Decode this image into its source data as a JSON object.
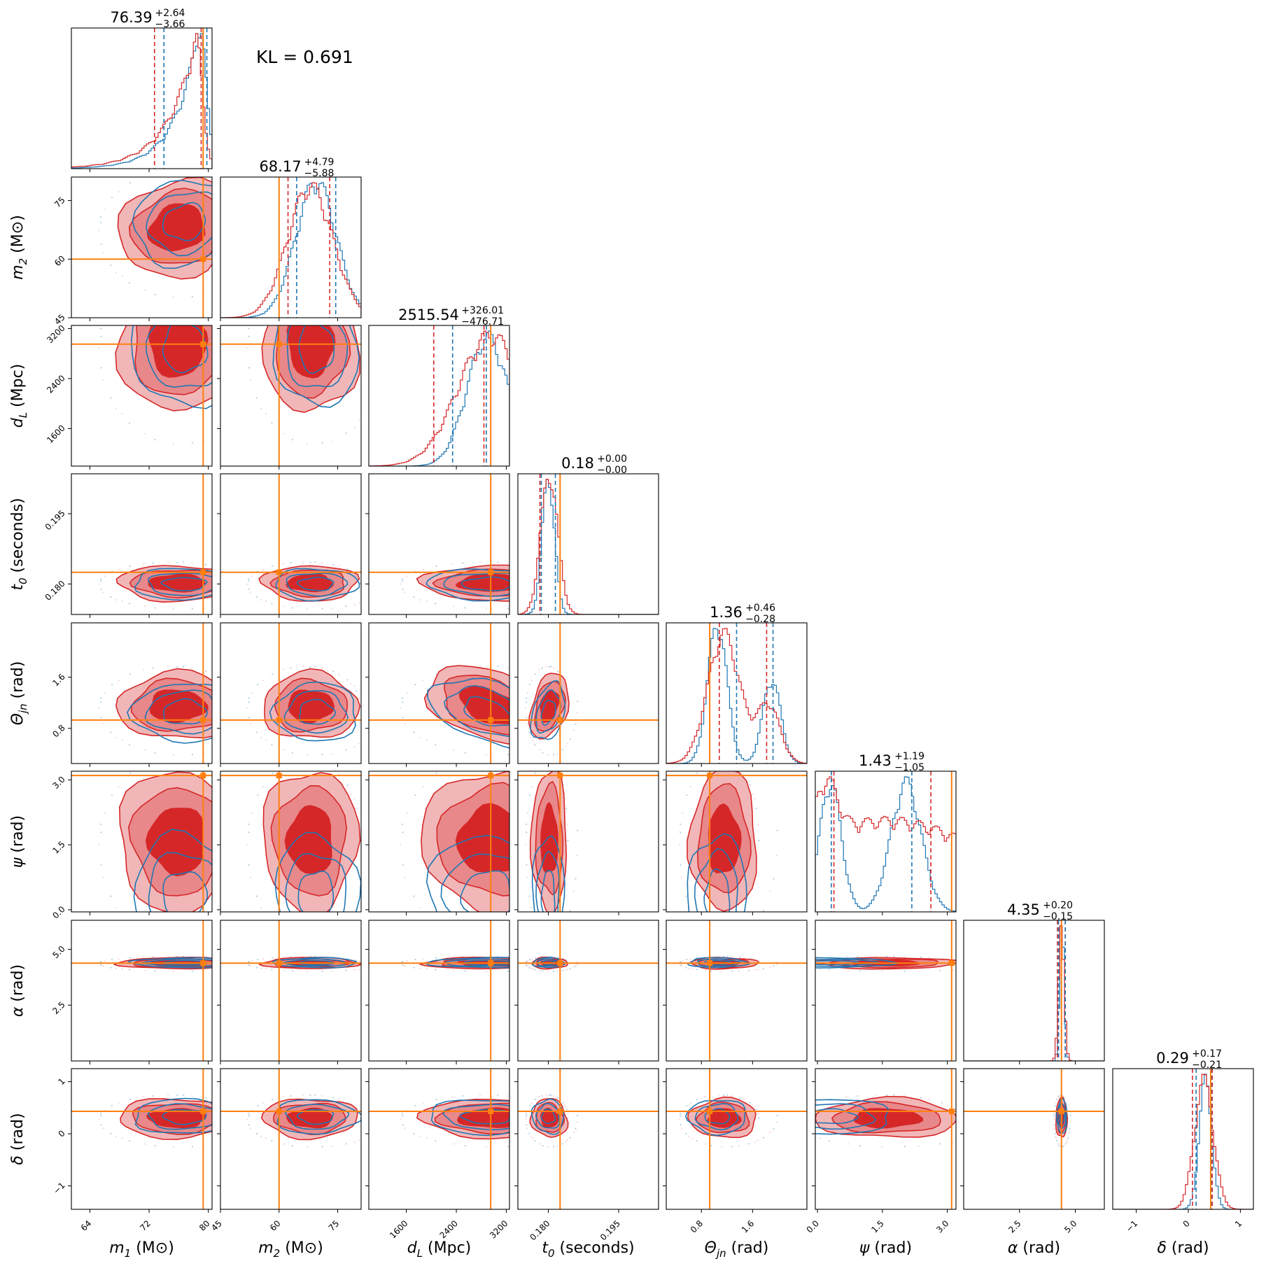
{
  "chart_data": {
    "type": "corner",
    "kl_text": "KL = 0.691",
    "colors": {
      "red": "#d62728",
      "red_light": "#e8888a",
      "red_fill": "#f1b7b8",
      "blue": "#1f77b4",
      "truth": "#ff7f0e"
    },
    "series": [
      {
        "name": "",
        "color": "#d62728"
      },
      {
        "name": "",
        "color": "#1f77b4"
      }
    ],
    "parameters": [
      {
        "key": "m1",
        "label_main": "m",
        "label_sub": "1",
        "label_unit": " (M⊙)",
        "range": [
          61.5,
          80.5
        ],
        "ticks": [
          64,
          72,
          80
        ],
        "tick_labels": [
          "64",
          "72",
          "80"
        ],
        "truth": 79.3,
        "median": 76.39,
        "plus": "+2.64",
        "minus": "−3.66",
        "median_text": "76.39",
        "red_q": [
          72.73,
          79.03
        ],
        "blue_q": [
          74.0,
          79.8
        ],
        "hist": {
          "red": {
            "mu": 78.3,
            "sd": 3.8,
            "mix": null,
            "lo": 62.0,
            "hi": 80.5,
            "skew": "left"
          },
          "blue": {
            "mu": 78.8,
            "sd": 3.2,
            "mix": null,
            "lo": 62.0,
            "hi": 80.5,
            "skew": "left"
          }
        }
      },
      {
        "key": "m2",
        "label_main": "m",
        "label_sub": "2",
        "label_unit": " (M⊙)",
        "range": [
          45,
          81
        ],
        "ticks": [
          45,
          60,
          75
        ],
        "tick_labels": [
          "45",
          "60",
          "75"
        ],
        "truth": 60.0,
        "median": 68.17,
        "plus": "+4.79",
        "minus": "−5.88",
        "median_text": "68.17",
        "red_q": [
          62.29,
          72.96
        ],
        "blue_q": [
          64.5,
          74.5
        ],
        "hist": {
          "red": {
            "mu": 68.0,
            "sd": 5.8
          },
          "blue": {
            "mu": 69.5,
            "sd": 5.2
          }
        }
      },
      {
        "key": "dL",
        "label_main": "d",
        "label_sub": "L",
        "label_unit": " (Mpc)",
        "range": [
          1000,
          3250
        ],
        "ticks": [
          1600,
          2400,
          3200
        ],
        "tick_labels": [
          "1600",
          "2400",
          "3200"
        ],
        "truth": 2950,
        "median": 2515.54,
        "plus": "+326.01",
        "minus": "−476.71",
        "median_text": "2515.54",
        "red_q": [
          2038.83,
          2841.55
        ],
        "blue_q": [
          2340,
          2880
        ],
        "hist": {
          "red": {
            "mu": 2950,
            "sd": 520
          },
          "blue": {
            "mu": 2900,
            "sd": 330
          }
        }
      },
      {
        "key": "t0",
        "label_main": "t",
        "label_sub": "0",
        "label_unit": " (seconds)",
        "range": [
          0.1735,
          0.2035
        ],
        "ticks": [
          0.18,
          0.195
        ],
        "tick_labels": [
          "0.180",
          "0.195"
        ],
        "truth": 0.1825,
        "median": 0.18,
        "plus": "+0.00",
        "minus": "−0.00",
        "median_text": "0.18",
        "red_q": [
          0.1782,
          0.1825
        ],
        "blue_q": [
          0.1785,
          0.1815
        ],
        "hist": {
          "red": {
            "mu": 0.1802,
            "sd": 0.0018
          },
          "blue": {
            "mu": 0.18,
            "sd": 0.0013
          }
        }
      },
      {
        "key": "theta_jn",
        "label_main": "Θ",
        "label_sub": "jn",
        "label_unit": " (rad)",
        "range": [
          0.25,
          2.45
        ],
        "ticks": [
          0.8,
          1.6
        ],
        "tick_labels": [
          "0.8",
          "1.6"
        ],
        "truth": 0.93,
        "median": 1.36,
        "plus": "+0.46",
        "minus": "−0.28",
        "median_text": "1.36",
        "red_q": [
          1.08,
          1.82
        ],
        "blue_q": [
          1.35,
          1.92
        ],
        "hist": {
          "red": {
            "mu": 1.15,
            "sd": 0.25,
            "mix": [
              1.85,
              0.18,
              0.45
            ]
          },
          "blue": {
            "mu": 1.05,
            "sd": 0.15,
            "mix": [
              1.9,
              0.14,
              0.6
            ]
          }
        }
      },
      {
        "key": "psi",
        "label_main": "ψ",
        "label_sub": "",
        "label_unit": " (rad)",
        "range": [
          -0.05,
          3.2
        ],
        "ticks": [
          0.0,
          1.5,
          3.0
        ],
        "tick_labels": [
          "0.0",
          "1.5",
          "3.0"
        ],
        "truth": 3.1,
        "median": 1.43,
        "plus": "+1.19",
        "minus": "−1.05",
        "median_text": "1.43",
        "red_q": [
          0.38,
          2.62
        ],
        "blue_q": [
          0.32,
          2.18
        ],
        "hist": {
          "red": {
            "mu": 1.6,
            "sd": 2.5,
            "mix": [
              0.2,
              0.25,
              0.6
            ]
          },
          "blue": {
            "mu": 0.3,
            "sd": 0.25,
            "mix": [
              2.05,
              0.35,
              1.0
            ]
          }
        }
      },
      {
        "key": "alpha",
        "label_main": "α",
        "label_sub": "",
        "label_unit": " (rad)",
        "range": [
          0.0,
          6.3
        ],
        "ticks": [
          2.5,
          5.0
        ],
        "tick_labels": [
          "2.5",
          "5.0"
        ],
        "truth": 4.38,
        "median": 4.35,
        "plus": "+0.20",
        "minus": "−0.15",
        "median_text": "4.35",
        "red_q": [
          4.2,
          4.55
        ],
        "blue_q": [
          4.25,
          4.55
        ],
        "hist": {
          "red": {
            "mu": 4.38,
            "sd": 0.12
          },
          "blue": {
            "mu": 4.4,
            "sd": 0.1
          }
        }
      },
      {
        "key": "delta",
        "label_main": "δ",
        "label_sub": "",
        "label_unit": " (rad)",
        "range": [
          -1.45,
          1.25
        ],
        "ticks": [
          -1,
          0,
          1
        ],
        "tick_labels": [
          "−1",
          "0",
          "1"
        ],
        "truth": 0.43,
        "median": 0.29,
        "plus": "+0.17",
        "minus": "−0.21",
        "median_text": "0.29",
        "red_q": [
          0.08,
          0.46
        ],
        "blue_q": [
          0.15,
          0.44
        ],
        "hist": {
          "red": {
            "mu": 0.3,
            "sd": 0.18
          },
          "blue": {
            "mu": 0.33,
            "sd": 0.12
          }
        }
      }
    ]
  }
}
